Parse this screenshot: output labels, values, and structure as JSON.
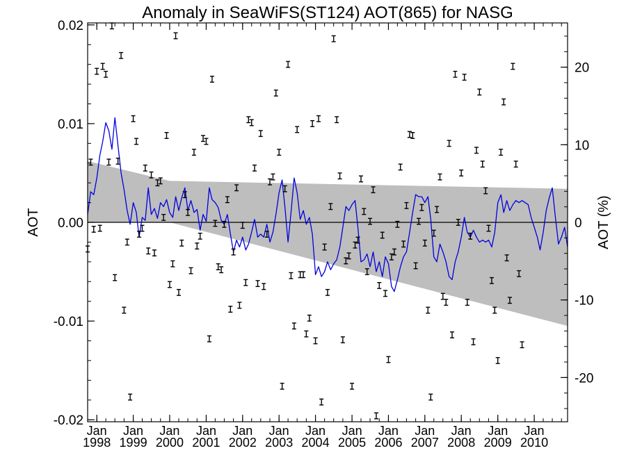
{
  "chart_data": {
    "type": "scatter",
    "title": "Anomaly in SeaWiFS(ST124) AOT(865) for NASG",
    "ylabel": "AOT",
    "ylabel_right": "AOT (%)",
    "xlabel": "",
    "xlim": [
      "1997-10-01",
      "2010-12-01"
    ],
    "ylim": [
      -0.0202,
      0.0202
    ],
    "ylim_right": [
      -25.7,
      25.7
    ],
    "x_ticks": [
      {
        "month": "Jan",
        "year": "1998",
        "date": "1998-01-01"
      },
      {
        "month": "Jan",
        "year": "1999",
        "date": "1999-01-01"
      },
      {
        "month": "Jan",
        "year": "2000",
        "date": "2000-01-01"
      },
      {
        "month": "Jan",
        "year": "2001",
        "date": "2001-01-01"
      },
      {
        "month": "Jan",
        "year": "2002",
        "date": "2002-01-01"
      },
      {
        "month": "Jan",
        "year": "2003",
        "date": "2003-01-01"
      },
      {
        "month": "Jan",
        "year": "2004",
        "date": "2004-01-01"
      },
      {
        "month": "Jan",
        "year": "2005",
        "date": "2005-01-01"
      },
      {
        "month": "Jan",
        "year": "2006",
        "date": "2006-01-01"
      },
      {
        "month": "Jan",
        "year": "2007",
        "date": "2007-01-01"
      },
      {
        "month": "Jan",
        "year": "2008",
        "date": "2008-01-01"
      },
      {
        "month": "Jan",
        "year": "2009",
        "date": "2009-01-01"
      },
      {
        "month": "Jan",
        "year": "2010",
        "date": "2010-01-01"
      }
    ],
    "y_ticks_left": [
      {
        "value": 0.02,
        "label": "0.02"
      },
      {
        "value": 0.01,
        "label": "0.01"
      },
      {
        "value": 0.0,
        "label": "0.00"
      },
      {
        "value": -0.01,
        "label": "-0.01"
      },
      {
        "value": -0.02,
        "label": "-0.02"
      }
    ],
    "y_ticks_right": [
      {
        "value": 20,
        "label": "20"
      },
      {
        "value": 10,
        "label": "10"
      },
      {
        "value": 0,
        "label": "0"
      },
      {
        "value": -10,
        "label": "-10"
      },
      {
        "value": -20,
        "label": "-20"
      }
    ],
    "zero_line": 0,
    "shaded_band": {
      "color": "#bebebe",
      "start": {
        "x": "1997-10-01",
        "upper": 0.0062,
        "lower": 0.0
      },
      "pivot": {
        "x": "2000-01-01",
        "upper": 0.0042,
        "lower": 0.0
      },
      "end": {
        "x": "2010-12-01",
        "upper": 0.0034,
        "lower": -0.0105
      }
    },
    "colors": {
      "line": "#0000dd",
      "points": "#000000",
      "band": "#bebebe",
      "axes": "#000000"
    },
    "line_series": [
      [
        "1997-10-01",
        0.0008
      ],
      [
        "1997-11-01",
        0.0031
      ],
      [
        "1997-12-01",
        0.0028
      ],
      [
        "1998-01-01",
        0.0045
      ],
      [
        "1998-02-01",
        0.0068
      ],
      [
        "1998-03-01",
        0.0082
      ],
      [
        "1998-04-01",
        0.0101
      ],
      [
        "1998-05-01",
        0.0093
      ],
      [
        "1998-06-01",
        0.0074
      ],
      [
        "1998-07-01",
        0.0106
      ],
      [
        "1998-08-01",
        0.0078
      ],
      [
        "1998-09-01",
        0.005
      ],
      [
        "1998-10-01",
        0.0033
      ],
      [
        "1998-11-01",
        0.0012
      ],
      [
        "1998-12-01",
        -0.0002
      ],
      [
        "1999-01-01",
        0.002
      ],
      [
        "1999-02-01",
        0.001
      ],
      [
        "1999-03-01",
        -0.0015
      ],
      [
        "1999-04-01",
        0.0005
      ],
      [
        "1999-05-01",
        0.0002
      ],
      [
        "1999-06-01",
        0.0035
      ],
      [
        "1999-07-01",
        0.0008
      ],
      [
        "1999-08-01",
        0.0014
      ],
      [
        "1999-09-01",
        0.0004
      ],
      [
        "1999-10-01",
        0.002
      ],
      [
        "1999-11-01",
        0.0016
      ],
      [
        "1999-12-01",
        0.0023
      ],
      [
        "2000-01-01",
        0.001
      ],
      [
        "2000-02-01",
        0.0005
      ],
      [
        "2000-03-01",
        0.0026
      ],
      [
        "2000-04-01",
        0.0012
      ],
      [
        "2000-05-01",
        0.0025
      ],
      [
        "2000-06-01",
        0.0035
      ],
      [
        "2000-07-01",
        0.0012
      ],
      [
        "2000-08-01",
        0.0022
      ],
      [
        "2000-09-01",
        0.001
      ],
      [
        "2000-10-01",
        0.0013
      ],
      [
        "2000-11-01",
        -0.0008
      ],
      [
        "2000-12-01",
        0.0008
      ],
      [
        "2001-01-01",
        0.0001
      ],
      [
        "2001-02-01",
        0.0035
      ],
      [
        "2001-03-01",
        0.0023
      ],
      [
        "2001-04-01",
        0.002
      ],
      [
        "2001-05-01",
        0.0015
      ],
      [
        "2001-06-01",
        0.0002
      ],
      [
        "2001-07-01",
        -0.0002
      ],
      [
        "2001-08-01",
        0.0008
      ],
      [
        "2001-09-01",
        -0.0012
      ],
      [
        "2001-10-01",
        -0.003
      ],
      [
        "2001-11-01",
        -0.0018
      ],
      [
        "2001-12-01",
        -0.0025
      ],
      [
        "2002-01-01",
        -0.0015
      ],
      [
        "2002-02-01",
        -0.0028
      ],
      [
        "2002-03-01",
        -0.0022
      ],
      [
        "2002-04-01",
        -0.001
      ],
      [
        "2002-05-01",
        0.0003
      ],
      [
        "2002-06-01",
        -0.0015
      ],
      [
        "2002-07-01",
        -0.0012
      ],
      [
        "2002-08-01",
        -0.0015
      ],
      [
        "2002-09-01",
        -0.0002
      ],
      [
        "2002-10-01",
        -0.002
      ],
      [
        "2002-11-01",
        -0.001
      ],
      [
        "2002-12-01",
        0.0008
      ],
      [
        "2003-01-01",
        0.003
      ],
      [
        "2003-02-01",
        0.0043
      ],
      [
        "2003-03-01",
        0.0015
      ],
      [
        "2003-04-01",
        -0.002
      ],
      [
        "2003-05-01",
        0.001
      ],
      [
        "2003-06-01",
        0.0045
      ],
      [
        "2003-07-01",
        0.003
      ],
      [
        "2003-08-01",
        0.0003
      ],
      [
        "2003-09-01",
        0.0012
      ],
      [
        "2003-10-01",
        -0.0002
      ],
      [
        "2003-11-01",
        0.0005
      ],
      [
        "2003-12-01",
        -0.0012
      ],
      [
        "2004-01-01",
        -0.0053
      ],
      [
        "2004-02-01",
        -0.0045
      ],
      [
        "2004-03-01",
        -0.0055
      ],
      [
        "2004-04-01",
        -0.005
      ],
      [
        "2004-05-01",
        -0.004
      ],
      [
        "2004-06-01",
        -0.0048
      ],
      [
        "2004-07-01",
        -0.0042
      ],
      [
        "2004-08-01",
        -0.0038
      ],
      [
        "2004-09-01",
        -0.0025
      ],
      [
        "2004-10-01",
        -0.0005
      ],
      [
        "2004-11-01",
        0.0016
      ],
      [
        "2004-12-01",
        0.0012
      ],
      [
        "2005-01-01",
        0.0018
      ],
      [
        "2005-02-01",
        0.0022
      ],
      [
        "2005-03-01",
        -0.0005
      ],
      [
        "2005-04-01",
        -0.004
      ],
      [
        "2005-05-01",
        -0.0038
      ],
      [
        "2005-06-01",
        -0.0032
      ],
      [
        "2005-07-01",
        -0.0045
      ],
      [
        "2005-08-01",
        -0.003
      ],
      [
        "2005-09-01",
        -0.005
      ],
      [
        "2005-10-01",
        -0.004
      ],
      [
        "2005-11-01",
        -0.0055
      ],
      [
        "2005-12-01",
        -0.0035
      ],
      [
        "2006-01-01",
        -0.0042
      ],
      [
        "2006-02-01",
        -0.0065
      ],
      [
        "2006-03-01",
        -0.007
      ],
      [
        "2006-04-01",
        -0.0058
      ],
      [
        "2006-05-01",
        -0.0045
      ],
      [
        "2006-06-01",
        -0.0035
      ],
      [
        "2006-07-01",
        -0.003
      ],
      [
        "2006-08-01",
        -0.001
      ],
      [
        "2006-09-01",
        0.001
      ],
      [
        "2006-10-01",
        0.0028
      ],
      [
        "2006-11-01",
        0.0026
      ],
      [
        "2006-12-01",
        0.0026
      ],
      [
        "2007-01-01",
        0.002
      ],
      [
        "2007-02-01",
        0.0026
      ],
      [
        "2007-03-01",
        0.0003
      ],
      [
        "2007-04-01",
        -0.0035
      ],
      [
        "2007-05-01",
        -0.004
      ],
      [
        "2007-06-01",
        -0.0022
      ],
      [
        "2007-07-01",
        -0.003
      ],
      [
        "2007-08-01",
        -0.004
      ],
      [
        "2007-09-01",
        -0.0055
      ],
      [
        "2007-10-01",
        -0.0058
      ],
      [
        "2007-11-01",
        -0.004
      ],
      [
        "2007-12-01",
        -0.003
      ],
      [
        "2008-01-01",
        -0.0015
      ],
      [
        "2008-02-01",
        0.0005
      ],
      [
        "2008-03-01",
        -0.001
      ],
      [
        "2008-04-01",
        -0.0015
      ],
      [
        "2008-05-01",
        -0.0008
      ],
      [
        "2008-06-01",
        -0.0015
      ],
      [
        "2008-07-01",
        -0.002
      ],
      [
        "2008-08-01",
        -0.0018
      ],
      [
        "2008-09-01",
        -0.002
      ],
      [
        "2008-10-01",
        -0.0018
      ],
      [
        "2008-11-01",
        -0.0025
      ],
      [
        "2008-12-01",
        -0.001
      ],
      [
        "2009-01-01",
        0.002
      ],
      [
        "2009-02-01",
        0.0028
      ],
      [
        "2009-03-01",
        0.001
      ],
      [
        "2009-04-01",
        0.0022
      ],
      [
        "2009-05-01",
        0.0012
      ],
      [
        "2009-06-01",
        0.0018
      ],
      [
        "2009-07-01",
        0.0022
      ],
      [
        "2009-08-01",
        0.002
      ],
      [
        "2009-09-01",
        0.0022
      ],
      [
        "2009-10-01",
        0.002
      ],
      [
        "2009-11-01",
        0.0018
      ],
      [
        "2009-12-01",
        0.0005
      ],
      [
        "2010-01-01",
        -0.0005
      ],
      [
        "2010-02-01",
        -0.0015
      ],
      [
        "2010-03-01",
        -0.0028
      ],
      [
        "2010-04-01",
        -0.001
      ],
      [
        "2010-05-01",
        0.0012
      ],
      [
        "2010-06-01",
        0.0025
      ],
      [
        "2010-07-01",
        0.0035
      ],
      [
        "2010-08-01",
        0.0005
      ],
      [
        "2010-09-01",
        -0.0022
      ],
      [
        "2010-10-01",
        -0.0015
      ],
      [
        "2010-11-01",
        -0.0005
      ],
      [
        "2010-12-01",
        -0.0025
      ]
    ],
    "points": [
      [
        "1997-10-01",
        -0.0027
      ],
      [
        "1997-11-01",
        0.0061
      ],
      [
        "1997-12-01",
        -0.0007
      ],
      [
        "1998-01-01",
        0.0153
      ],
      [
        "1998-02-01",
        -0.0006
      ],
      [
        "1998-03-01",
        0.0158
      ],
      [
        "1998-04-01",
        0.015
      ],
      [
        "1998-05-01",
        0.0061
      ],
      [
        "1998-06-01",
        0.0199
      ],
      [
        "1998-07-01",
        -0.0056
      ],
      [
        "1998-08-01",
        0.0062
      ],
      [
        "1998-09-01",
        0.0169
      ],
      [
        "1998-10-01",
        -0.0089
      ],
      [
        "1998-11-01",
        -0.002
      ],
      [
        "1998-12-01",
        -0.0177
      ],
      [
        "1999-01-01",
        0.0105
      ],
      [
        "1999-02-01",
        0.0082
      ],
      [
        "1999-03-01",
        -0.0012
      ],
      [
        "1999-04-01",
        -0.0006
      ],
      [
        "1999-05-01",
        0.0055
      ],
      [
        "1999-06-01",
        -0.0029
      ],
      [
        "1999-07-01",
        0.0048
      ],
      [
        "1999-08-01",
        -0.0031
      ],
      [
        "1999-09-01",
        0.004
      ],
      [
        "1999-10-01",
        0.0042
      ],
      [
        "1999-11-01",
        0.0005
      ],
      [
        "1999-12-01",
        0.0088
      ],
      [
        "2000-01-01",
        -0.0063
      ],
      [
        "2000-02-01",
        -0.0042
      ],
      [
        "2000-03-01",
        0.0189
      ],
      [
        "2000-04-01",
        -0.0071
      ],
      [
        "2000-05-01",
        -0.0021
      ],
      [
        "2000-06-01",
        0.0028
      ],
      [
        "2000-07-01",
        0.001
      ],
      [
        "2000-08-01",
        -0.0049
      ],
      [
        "2000-09-01",
        0.0071
      ],
      [
        "2000-10-01",
        -0.0024
      ],
      [
        "2000-11-01",
        -0.0014
      ],
      [
        "2000-12-01",
        0.0085
      ],
      [
        "2001-01-01",
        0.0082
      ],
      [
        "2001-02-01",
        -0.0118
      ],
      [
        "2001-03-01",
        0.0145
      ],
      [
        "2001-04-01",
        -0.0001
      ],
      [
        "2001-05-01",
        -0.0045
      ],
      [
        "2001-06-01",
        -0.0048
      ],
      [
        "2001-07-01",
        -0.0002
      ],
      [
        "2001-08-01",
        0.0023
      ],
      [
        "2001-09-01",
        -0.0088
      ],
      [
        "2001-10-01",
        -0.003
      ],
      [
        "2001-11-01",
        0.0035
      ],
      [
        "2001-12-01",
        -0.0084
      ],
      [
        "2002-01-01",
        -0.0003
      ],
      [
        "2002-02-01",
        -0.0061
      ],
      [
        "2002-03-01",
        0.0104
      ],
      [
        "2002-04-01",
        0.0101
      ],
      [
        "2002-05-01",
        0.0055
      ],
      [
        "2002-06-01",
        -0.0062
      ],
      [
        "2002-07-01",
        0.009
      ],
      [
        "2002-08-01",
        -0.0065
      ],
      [
        "2002-09-01",
        -0.0012
      ],
      [
        "2002-10-01",
        0.0041
      ],
      [
        "2002-11-01",
        0.0046
      ],
      [
        "2002-12-01",
        0.0131
      ],
      [
        "2003-01-01",
        0.0071
      ],
      [
        "2003-02-01",
        -0.0166
      ],
      [
        "2003-03-01",
        0.0034
      ],
      [
        "2003-04-01",
        0.016
      ],
      [
        "2003-05-01",
        -0.0054
      ],
      [
        "2003-06-01",
        -0.0105
      ],
      [
        "2003-07-01",
        0.0094
      ],
      [
        "2003-08-01",
        -0.0053
      ],
      [
        "2003-09-01",
        -0.0053
      ],
      [
        "2003-10-01",
        -0.0113
      ],
      [
        "2003-11-01",
        -0.0097
      ],
      [
        "2003-12-01",
        0.01
      ],
      [
        "2004-01-01",
        -0.012
      ],
      [
        "2004-02-01",
        0.0105
      ],
      [
        "2004-03-01",
        -0.0182
      ],
      [
        "2004-04-01",
        -0.0025
      ],
      [
        "2004-05-01",
        -0.0071
      ],
      [
        "2004-06-01",
        0.0016
      ],
      [
        "2004-07-01",
        0.0186
      ],
      [
        "2004-08-01",
        0.0104
      ],
      [
        "2004-09-01",
        0.0047
      ],
      [
        "2004-10-01",
        -0.0119
      ],
      [
        "2004-11-01",
        -0.0039
      ],
      [
        "2004-12-01",
        -0.0034
      ],
      [
        "2005-01-01",
        -0.0166
      ],
      [
        "2005-02-01",
        -0.0023
      ],
      [
        "2005-03-01",
        -0.0018
      ],
      [
        "2005-04-01",
        0.0044
      ],
      [
        "2005-05-01",
        0.0011
      ],
      [
        "2005-06-01",
        -0.005
      ],
      [
        "2005-07-01",
        0.0001
      ],
      [
        "2005-08-01",
        0.0033
      ],
      [
        "2005-09-01",
        -0.0196
      ],
      [
        "2005-10-01",
        -0.0064
      ],
      [
        "2005-11-01",
        -0.0013
      ],
      [
        "2005-12-01",
        -0.0072
      ],
      [
        "2006-01-01",
        -0.0139
      ],
      [
        "2006-02-01",
        -0.0035
      ],
      [
        "2006-03-01",
        -0.003
      ],
      [
        "2006-04-01",
        -0.0002
      ],
      [
        "2006-05-01",
        0.0056
      ],
      [
        "2006-06-01",
        -0.0022
      ],
      [
        "2006-07-01",
        0.0017
      ],
      [
        "2006-08-01",
        0.0089
      ],
      [
        "2006-09-01",
        0.0088
      ],
      [
        "2006-10-01",
        -0.0044
      ],
      [
        "2006-11-01",
        0.0001
      ],
      [
        "2006-12-01",
        0.0015
      ],
      [
        "2007-01-01",
        -0.0021
      ],
      [
        "2007-02-01",
        -0.0089
      ],
      [
        "2007-03-01",
        -0.0177
      ],
      [
        "2007-04-01",
        -0.0011
      ],
      [
        "2007-05-01",
        0.0013
      ],
      [
        "2007-06-01",
        0.0046
      ],
      [
        "2007-07-01",
        -0.0075
      ],
      [
        "2007-08-01",
        -0.0081
      ],
      [
        "2007-09-01",
        0.008
      ],
      [
        "2007-10-01",
        -0.0114
      ],
      [
        "2007-11-01",
        0.015
      ],
      [
        "2007-12-01",
        0.0
      ],
      [
        "2008-01-01",
        0.005
      ],
      [
        "2008-02-01",
        0.0147
      ],
      [
        "2008-03-01",
        -0.0081
      ],
      [
        "2008-04-01",
        -0.0014
      ],
      [
        "2008-05-01",
        -0.0121
      ],
      [
        "2008-06-01",
        0.0073
      ],
      [
        "2008-07-01",
        0.0132
      ],
      [
        "2008-08-01",
        0.0059
      ],
      [
        "2008-09-01",
        0.0032
      ],
      [
        "2008-10-01",
        -0.0006
      ],
      [
        "2008-11-01",
        -0.0059
      ],
      [
        "2008-12-01",
        -0.0089
      ],
      [
        "2009-01-01",
        -0.014
      ],
      [
        "2009-02-01",
        0.0071
      ],
      [
        "2009-03-01",
        0.0122
      ],
      [
        "2009-04-01",
        -0.0036
      ],
      [
        "2009-05-01",
        -0.0079
      ],
      [
        "2009-06-01",
        0.0158
      ],
      [
        "2009-07-01",
        0.0059
      ],
      [
        "2009-08-01",
        -0.0052
      ],
      [
        "2009-09-01",
        -0.0124
      ]
    ],
    "point_error": 0.0003,
    "grid": false,
    "legend": "none"
  }
}
